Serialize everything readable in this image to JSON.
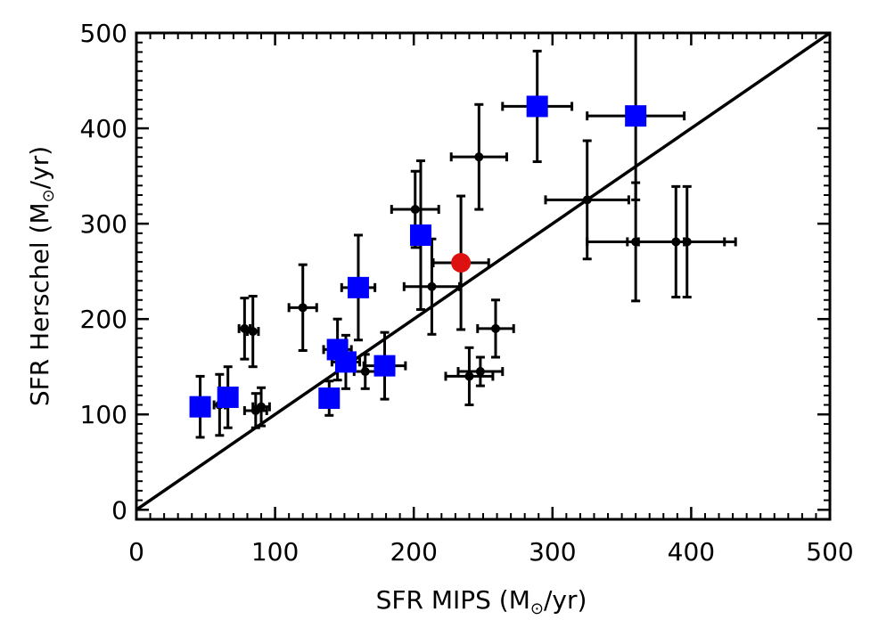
{
  "chart_data": {
    "type": "scatter",
    "title": "",
    "xlabel": {
      "prefix": "SFR MIPS (M",
      "sub": "⊙",
      "suffix": "/yr)"
    },
    "ylabel": {
      "prefix": "SFR Herschel (M",
      "sub": "⊙",
      "suffix": "/yr)"
    },
    "xlim": [
      0,
      500
    ],
    "ylim": [
      -10,
      500
    ],
    "xticks": [
      0,
      100,
      200,
      300,
      400,
      500
    ],
    "xtick_labels": [
      "0",
      "100",
      "200",
      "300",
      "400",
      "500"
    ],
    "yticks": [
      0,
      100,
      200,
      300,
      400,
      500
    ],
    "ytick_labels": [
      "0",
      "100",
      "200",
      "300",
      "400",
      "500"
    ],
    "grid": false,
    "reference_line": {
      "x": [
        0,
        500
      ],
      "y": [
        0,
        500
      ],
      "color": "#000000"
    },
    "series": [
      {
        "marker": "circle-small",
        "color": "#000000",
        "points": [
          {
            "x": 78,
            "y": 190,
            "xerr": 4,
            "yerr": 32
          },
          {
            "x": 84,
            "y": 187,
            "xerr": 4,
            "yerr": 37
          },
          {
            "x": 60,
            "y": 110,
            "xerr": 4,
            "yerr": 32
          },
          {
            "x": 86,
            "y": 104,
            "xerr": 8,
            "yerr": 18
          },
          {
            "x": 90,
            "y": 108,
            "xerr": 6,
            "yerr": 20
          },
          {
            "x": 120,
            "y": 212,
            "xerr": 10,
            "yerr": 45
          },
          {
            "x": 165,
            "y": 145,
            "xerr": 8,
            "yerr": 18
          },
          {
            "x": 201,
            "y": 315,
            "xerr": 17,
            "yerr": 40
          },
          {
            "x": 213,
            "y": 234,
            "xerr": 20,
            "yerr": 50
          },
          {
            "x": 247,
            "y": 370,
            "xerr": 20,
            "yerr": 55
          },
          {
            "x": 240,
            "y": 140,
            "xerr": 17,
            "yerr": 30
          },
          {
            "x": 248,
            "y": 145,
            "xerr": 16,
            "yerr": 15
          },
          {
            "x": 259,
            "y": 190,
            "xerr": 13,
            "yerr": 30
          },
          {
            "x": 325,
            "y": 325,
            "xerr": 30,
            "yerr": 62
          },
          {
            "x": 360,
            "y": 281,
            "xerr": 35,
            "yerr": 62
          },
          {
            "x": 389,
            "y": 281,
            "xerr": 35,
            "yerr": 58
          },
          {
            "x": 397,
            "y": 281,
            "xerr": 35,
            "yerr": 58
          }
        ]
      },
      {
        "marker": "square",
        "color": "#0000ff",
        "points": [
          {
            "x": 46,
            "y": 108,
            "xerr": 0,
            "yerr": 32
          },
          {
            "x": 66,
            "y": 118,
            "xerr": 0,
            "yerr": 32
          },
          {
            "x": 139,
            "y": 117,
            "xerr": 0,
            "yerr": 18
          },
          {
            "x": 145,
            "y": 168,
            "xerr": 10,
            "yerr": 32
          },
          {
            "x": 151,
            "y": 155,
            "xerr": 10,
            "yerr": 28
          },
          {
            "x": 160,
            "y": 233,
            "xerr": 12,
            "yerr": 55
          },
          {
            "x": 179,
            "y": 151,
            "xerr": 15,
            "yerr": 35
          },
          {
            "x": 205,
            "y": 288,
            "xerr": 0,
            "yerr": 78
          },
          {
            "x": 289,
            "y": 423,
            "xerr": 25,
            "yerr": 58
          },
          {
            "x": 360,
            "y": 413,
            "xerr": 35,
            "yerr": 88
          }
        ]
      },
      {
        "marker": "circle",
        "color": "#dd1111",
        "points": [
          {
            "x": 234,
            "y": 259,
            "xerr": 20,
            "yerr": 70
          }
        ]
      }
    ]
  }
}
